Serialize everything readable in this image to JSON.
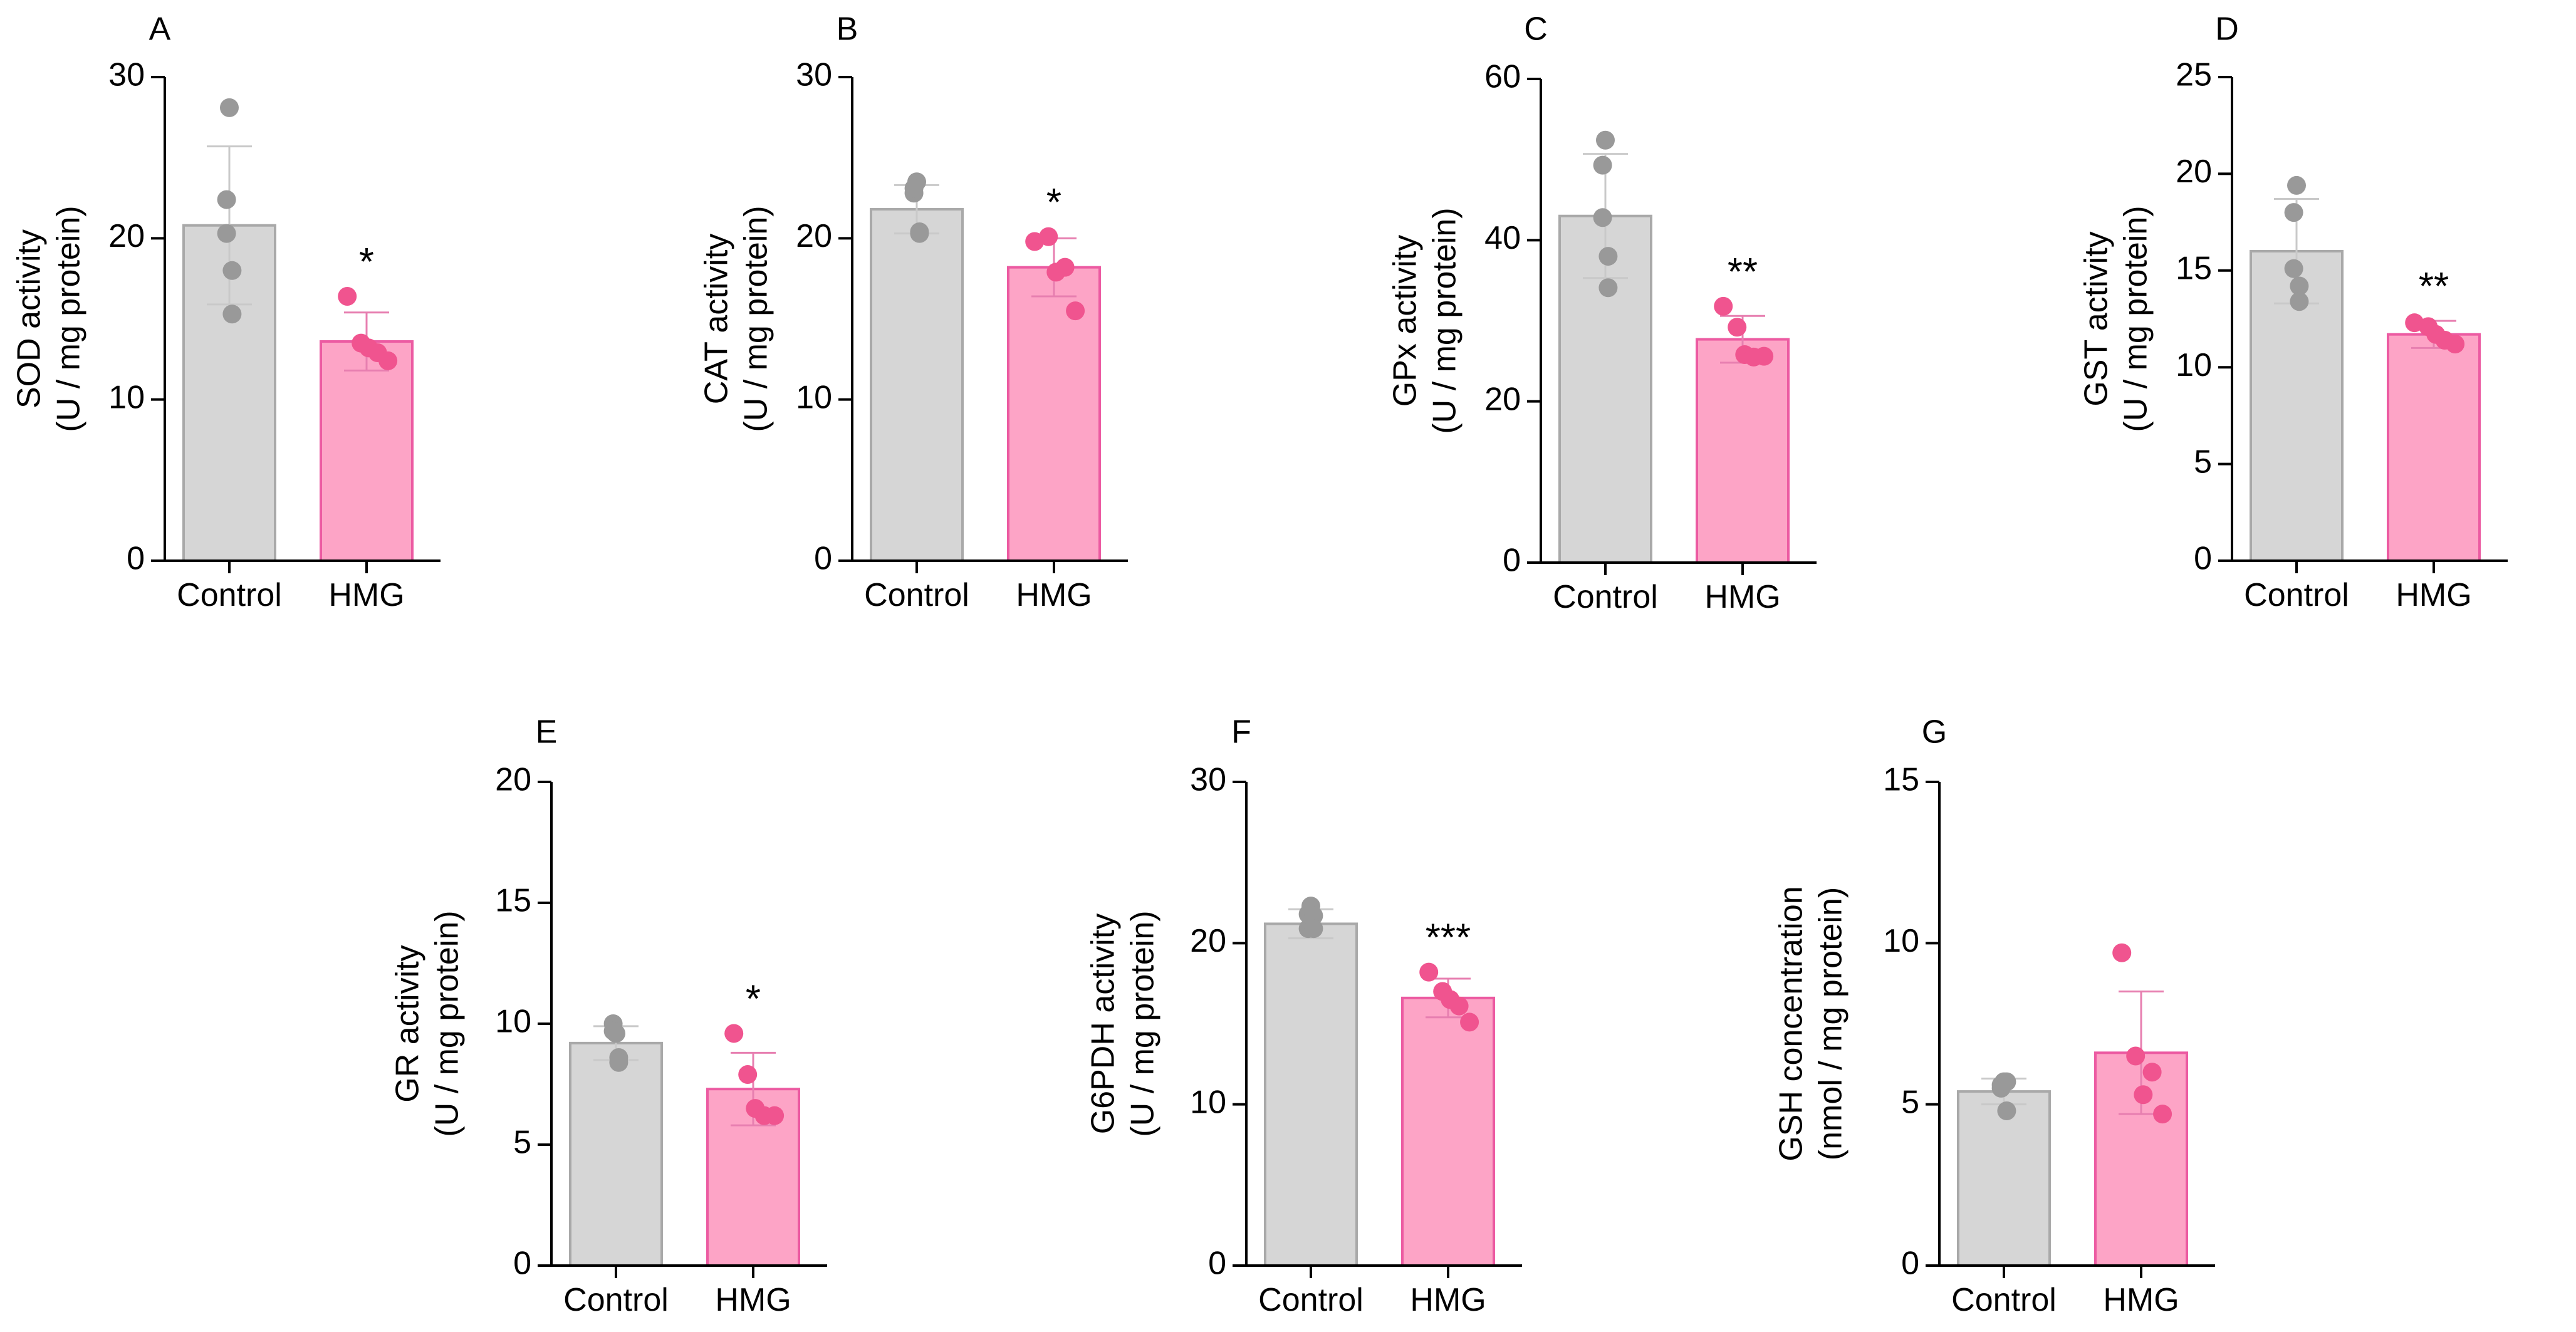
{
  "colors": {
    "axis": "#000000",
    "control_fill": "#d6d6d6",
    "control_stroke": "#a9a9a9",
    "control_dot": "#999999",
    "hmg_fill": "#fda4c6",
    "hmg_stroke": "#ec5ba2",
    "hmg_dot": "#f0548f",
    "error_control": "#c9c9c9",
    "error_hmg": "#e77fb0"
  },
  "chart_data": [
    {
      "panel": "A",
      "type": "bar",
      "ylabel": [
        "SOD activity",
        "(U / mg protein)"
      ],
      "ylim": [
        0,
        30
      ],
      "yticks": [
        0,
        10,
        20,
        30
      ],
      "categories": [
        "Control",
        "HMG"
      ],
      "means": [
        20.8,
        13.6
      ],
      "sd": [
        4.9,
        1.8
      ],
      "points": [
        [
          28.1,
          22.4,
          20.3,
          18.0,
          15.3
        ],
        [
          16.4,
          13.5,
          13.2,
          12.9,
          12.4
        ]
      ],
      "significance": "*"
    },
    {
      "panel": "B",
      "type": "bar",
      "ylabel": [
        "CAT activity",
        "(U / mg protein)"
      ],
      "ylim": [
        0,
        30
      ],
      "yticks": [
        0,
        10,
        20,
        30
      ],
      "categories": [
        "Control",
        "HMG"
      ],
      "means": [
        21.8,
        18.2
      ],
      "sd": [
        1.5,
        1.8
      ],
      "points": [
        [
          23.5,
          22.8,
          23.1,
          20.3,
          20.4
        ],
        [
          19.8,
          20.1,
          17.9,
          18.2,
          15.5
        ]
      ],
      "significance": "*"
    },
    {
      "panel": "C",
      "type": "bar",
      "ylabel": [
        "GPx activity",
        "(U / mg protein)"
      ],
      "ylim": [
        0,
        60
      ],
      "yticks": [
        0,
        20,
        40,
        60
      ],
      "categories": [
        "Control",
        "HMG"
      ],
      "means": [
        43.0,
        27.7
      ],
      "sd": [
        7.7,
        2.9
      ],
      "points": [
        [
          52.4,
          49.3,
          42.8,
          38.0,
          34.1
        ],
        [
          31.8,
          29.2,
          25.8,
          25.5,
          25.6
        ]
      ],
      "significance": "**"
    },
    {
      "panel": "D",
      "type": "bar",
      "ylabel": [
        "GST activity",
        "(U / mg protein)"
      ],
      "ylim": [
        0,
        25
      ],
      "yticks": [
        0,
        5,
        10,
        15,
        20,
        25
      ],
      "categories": [
        "Control",
        "HMG"
      ],
      "means": [
        16.0,
        11.7
      ],
      "sd": [
        2.7,
        0.7
      ],
      "points": [
        [
          19.4,
          18.0,
          15.1,
          14.2,
          13.4
        ],
        [
          12.3,
          12.1,
          11.7,
          11.4,
          11.2
        ]
      ],
      "significance": "**"
    },
    {
      "panel": "E",
      "type": "bar",
      "ylabel": [
        "GR activity",
        "(U / mg protein)"
      ],
      "ylim": [
        0,
        20
      ],
      "yticks": [
        0,
        5,
        10,
        15,
        20
      ],
      "categories": [
        "Control",
        "HMG"
      ],
      "means": [
        9.2,
        7.3
      ],
      "sd": [
        0.7,
        1.5
      ],
      "points": [
        [
          9.6,
          10.0,
          9.7,
          8.6,
          8.4
        ],
        [
          9.6,
          7.9,
          6.5,
          6.2,
          6.2
        ]
      ],
      "significance": "*"
    },
    {
      "panel": "F",
      "type": "bar",
      "ylabel": [
        "G6PDH activity",
        "(U / mg protein)"
      ],
      "ylim": [
        0,
        30
      ],
      "yticks": [
        0,
        10,
        20,
        30
      ],
      "categories": [
        "Control",
        "HMG"
      ],
      "means": [
        21.2,
        16.6
      ],
      "sd": [
        0.9,
        1.2
      ],
      "points": [
        [
          22.3,
          20.9,
          21.8,
          21.7,
          20.9
        ],
        [
          18.2,
          17.0,
          16.5,
          16.1,
          15.1
        ]
      ],
      "significance": "***"
    },
    {
      "panel": "G",
      "type": "bar",
      "ylabel": [
        "GSH concentration",
        "(nmol / mg protein)"
      ],
      "ylim": [
        0,
        15
      ],
      "yticks": [
        0,
        5,
        10,
        15
      ],
      "categories": [
        "Control",
        "HMG"
      ],
      "means": [
        5.4,
        6.6
      ],
      "sd": [
        0.4,
        1.9
      ],
      "points": [
        [
          5.7,
          5.5,
          5.6,
          5.7,
          4.8
        ],
        [
          9.7,
          6.5,
          5.3,
          6.0,
          4.7
        ]
      ],
      "significance": ""
    }
  ]
}
